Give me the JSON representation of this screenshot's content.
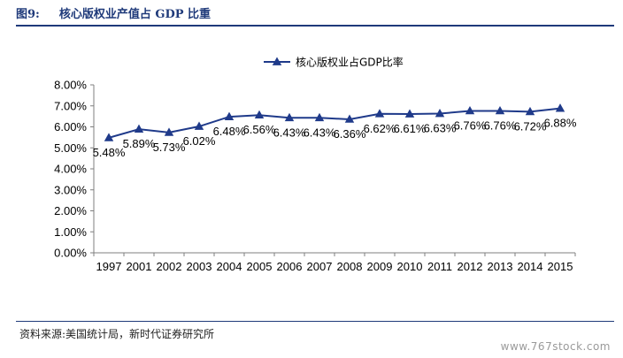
{
  "header": {
    "figure_no": "图9:",
    "title": "核心版权业产值占 GDP 比重"
  },
  "footer": {
    "source": "资料来源:美国统计局，新时代证券研究所",
    "watermark": "www.767stock.com"
  },
  "colors": {
    "series": "#1f3a8a",
    "heading": "#1f3a7a",
    "axis": "#7f7f7f",
    "text": "#000000"
  },
  "chart_data": {
    "type": "line",
    "title": "",
    "xlabel": "",
    "ylabel": "",
    "categories": [
      "1997",
      "2001",
      "2002",
      "2003",
      "2004",
      "2005",
      "2006",
      "2007",
      "2008",
      "2009",
      "2010",
      "2011",
      "2012",
      "2013",
      "2014",
      "2015"
    ],
    "series": [
      {
        "name": "核心版权业占GDP比率",
        "values": [
          5.48,
          5.89,
          5.73,
          6.02,
          6.48,
          6.56,
          6.43,
          6.43,
          6.36,
          6.62,
          6.61,
          6.63,
          6.76,
          6.76,
          6.72,
          6.88
        ],
        "labels": [
          "5.48%",
          "5.89%",
          "5.73%",
          "6.02%",
          "6.48%",
          "6.56%",
          "6.43%",
          "6.43%",
          "6.36%",
          "6.62%",
          "6.61%",
          "6.63%",
          "6.76%",
          "6.76%",
          "6.72%",
          "6.88%"
        ],
        "marker": "triangle"
      }
    ],
    "ylim": [
      0,
      8
    ],
    "yticks": [
      "0.00%",
      "1.00%",
      "2.00%",
      "3.00%",
      "4.00%",
      "5.00%",
      "6.00%",
      "7.00%",
      "8.00%"
    ],
    "grid": false,
    "legend": "top-center"
  }
}
